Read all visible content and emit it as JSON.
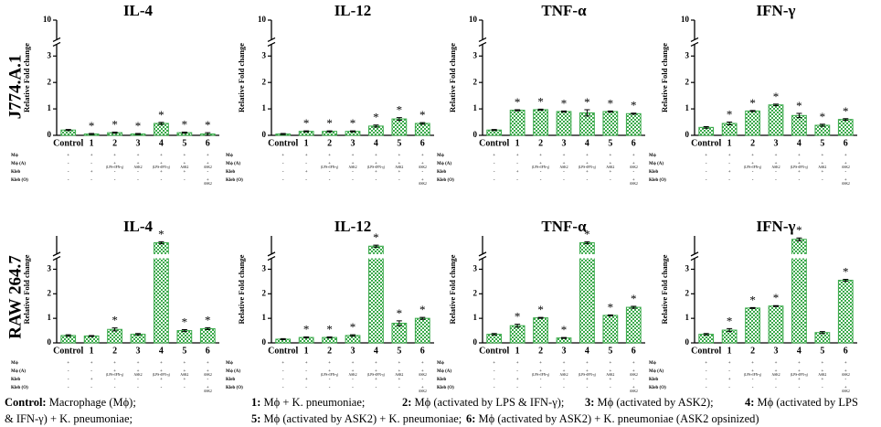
{
  "row_labels": [
    "J774.A.1",
    "RAW 264.7"
  ],
  "matrix": {
    "rows": [
      {
        "label": "Mϕ",
        "cells": [
          "+",
          "+",
          "+",
          "+",
          "+",
          "+",
          "+"
        ],
        "notes": [
          null,
          null,
          null,
          null,
          null,
          null,
          null
        ]
      },
      {
        "label": "Mϕ (A)",
        "cells": [
          "-",
          "-",
          "+",
          "+",
          "+",
          "+",
          "+"
        ],
        "notes": [
          null,
          null,
          "(LPS+IFN-γ)",
          "ASK2",
          "(LPS+IFN-γ)",
          "ASK2",
          "ASK2"
        ]
      },
      {
        "label": "Kleb",
        "cells": [
          "-",
          "+",
          "-",
          "-",
          "+",
          "+",
          "-"
        ],
        "notes": [
          null,
          null,
          null,
          null,
          null,
          null,
          null
        ]
      },
      {
        "label": "Kleb (O)",
        "cells": [
          "-",
          "-",
          "-",
          "-",
          "-",
          "-",
          "+"
        ],
        "notes": [
          null,
          null,
          null,
          null,
          null,
          null,
          "ASK2"
        ]
      }
    ]
  },
  "footer": [
    [
      {
        "key": "Control:",
        "text": " Macrophage (Mϕ);"
      },
      {
        "key": "1:",
        "text": " Mϕ + K. pneumoniae;"
      },
      {
        "key": "2:",
        "text": " Mϕ (activated by LPS & IFN-γ);"
      },
      {
        "key": "3:",
        "text": " Mϕ (activated by ASK2);"
      },
      {
        "key": "4:",
        "text": " Mϕ (activated by LPS"
      }
    ],
    [
      {
        "text": "& IFN-γ) + K. pneumoniae;"
      },
      {
        "key": "5:",
        "text": " Mϕ (activated by ASK2) + K. pneumoniae;"
      },
      {
        "key": "6:",
        "text": " Mϕ (activated by ASK2) + K. pneumoniae (ASK2 opsinized)"
      }
    ]
  ],
  "chart_data": [
    {
      "type": "bar",
      "title": "IL-4",
      "ylabel": "Relative Fold change",
      "categories": [
        "Control",
        "1",
        "2",
        "3",
        "4",
        "5",
        "6"
      ],
      "values": [
        0.2,
        0.05,
        0.1,
        0.05,
        0.45,
        0.1,
        0.05
      ],
      "errors": [
        0.02,
        0.02,
        0.02,
        0.02,
        0.04,
        0.02,
        0.05
      ],
      "stars": [
        null,
        "*",
        "*",
        "*",
        "*",
        "*",
        "*"
      ],
      "ylim": [
        0,
        10
      ],
      "ybreak": [
        3.4,
        9
      ],
      "yticks": [
        0,
        1,
        2,
        3,
        10
      ],
      "color": "#3aa94a"
    },
    {
      "type": "bar",
      "title": "IL-12",
      "ylabel": "Relative Fold change",
      "categories": [
        "Control",
        "1",
        "2",
        "3",
        "4",
        "5",
        "6"
      ],
      "values": [
        0.05,
        0.15,
        0.15,
        0.15,
        0.35,
        0.62,
        0.45
      ],
      "errors": [
        0.02,
        0.02,
        0.02,
        0.02,
        0.04,
        0.05,
        0.03
      ],
      "stars": [
        null,
        "*",
        "*",
        "*",
        "*",
        "*",
        "*"
      ],
      "ylim": [
        0,
        10
      ],
      "ybreak": [
        3.4,
        9
      ],
      "yticks": [
        0,
        1,
        2,
        3,
        10
      ],
      "color": "#3aa94a"
    },
    {
      "type": "bar",
      "title": "TNF-α",
      "ylabel": "Relative Fold change",
      "categories": [
        "Control",
        "1",
        "2",
        "3",
        "4",
        "5",
        "6"
      ],
      "values": [
        0.2,
        0.95,
        0.97,
        0.9,
        0.85,
        0.9,
        0.82
      ],
      "errors": [
        0.02,
        0.02,
        0.02,
        0.02,
        0.12,
        0.02,
        0.02
      ],
      "stars": [
        null,
        "*",
        "*",
        "*",
        "*",
        "*",
        "*"
      ],
      "ylim": [
        0,
        10
      ],
      "ybreak": [
        3.4,
        9
      ],
      "yticks": [
        0,
        1,
        2,
        3,
        10
      ],
      "color": "#3aa94a"
    },
    {
      "type": "bar",
      "title": "IFN-γ",
      "ylabel": "Relative Fold change",
      "categories": [
        "Control",
        "1",
        "2",
        "3",
        "4",
        "5",
        "6"
      ],
      "values": [
        0.3,
        0.45,
        0.92,
        1.15,
        0.75,
        0.38,
        0.6
      ],
      "errors": [
        0.03,
        0.05,
        0.02,
        0.03,
        0.08,
        0.04,
        0.03
      ],
      "stars": [
        null,
        "*",
        "*",
        "*",
        "*",
        "*",
        "*"
      ],
      "ylim": [
        0,
        10
      ],
      "ybreak": [
        3.4,
        9
      ],
      "yticks": [
        0,
        1,
        2,
        3,
        10
      ],
      "color": "#3aa94a"
    },
    {
      "type": "bar",
      "title": "IL-4",
      "ylabel": "Relative Fold change",
      "categories": [
        "Control",
        "1",
        "2",
        "3",
        "4",
        "5",
        "6"
      ],
      "values": [
        0.3,
        0.28,
        0.55,
        0.35,
        18,
        0.5,
        0.58
      ],
      "errors": [
        0.03,
        0.02,
        0.06,
        0.03,
        0.3,
        0.04,
        0.04
      ],
      "stars": [
        null,
        null,
        "*",
        null,
        "*",
        "*",
        "*"
      ],
      "ylim": [
        0,
        20
      ],
      "ybreak": [
        3.4,
        15
      ],
      "yticks": [
        0,
        1,
        2,
        3
      ],
      "color": "#3aa94a"
    },
    {
      "type": "bar",
      "title": "IL-12",
      "ylabel": "Relative Fold change",
      "categories": [
        "Control",
        "1",
        "2",
        "3",
        "4",
        "5",
        "6"
      ],
      "values": [
        0.15,
        0.22,
        0.22,
        0.3,
        17,
        0.8,
        1.0
      ],
      "errors": [
        0.02,
        0.02,
        0.02,
        0.03,
        0.3,
        0.1,
        0.04
      ],
      "stars": [
        null,
        "*",
        "*",
        "*",
        "*",
        "*",
        "*"
      ],
      "ylim": [
        0,
        20
      ],
      "ybreak": [
        3.4,
        15
      ],
      "yticks": [
        0,
        1,
        2,
        3
      ],
      "color": "#3aa94a"
    },
    {
      "type": "bar",
      "title": "TNF-α",
      "ylabel": "Relative Fold change",
      "categories": [
        "Control",
        "1",
        "2",
        "3",
        "4",
        "5",
        "6"
      ],
      "values": [
        0.35,
        0.7,
        1.02,
        0.2,
        18,
        1.12,
        1.45
      ],
      "errors": [
        0.03,
        0.06,
        0.02,
        0.02,
        0.3,
        0.02,
        0.04
      ],
      "stars": [
        null,
        "*",
        "*",
        "*",
        "*",
        "*",
        "*"
      ],
      "ylim": [
        0,
        20
      ],
      "ybreak": [
        3.4,
        15
      ],
      "yticks": [
        0,
        1,
        2,
        3
      ],
      "color": "#3aa94a"
    },
    {
      "type": "bar",
      "title": "IFN-γ",
      "ylabel": "Relative Fold change",
      "categories": [
        "Control",
        "1",
        "2",
        "3",
        "4",
        "5",
        "6"
      ],
      "values": [
        0.35,
        0.52,
        1.42,
        1.5,
        19,
        0.42,
        2.55
      ],
      "errors": [
        0.03,
        0.06,
        0.02,
        0.02,
        0.4,
        0.04,
        0.04
      ],
      "stars": [
        null,
        "*",
        "*",
        "*",
        "*",
        null,
        "*"
      ],
      "ylim": [
        0,
        20
      ],
      "ybreak": [
        3.4,
        15
      ],
      "yticks": [
        0,
        1,
        2,
        3
      ],
      "color": "#3aa94a"
    }
  ]
}
